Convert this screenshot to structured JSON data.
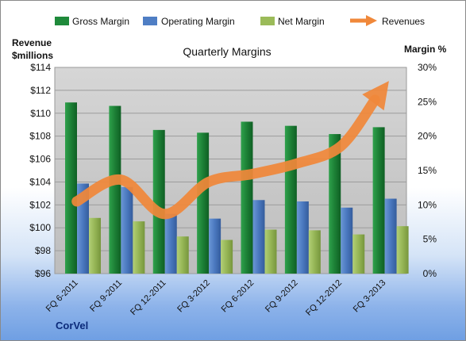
{
  "chart_data": {
    "type": "bar",
    "title": "Quarterly Margins",
    "company": "CorVel",
    "ylabel_left": [
      "Revenue",
      "$millions"
    ],
    "ylabel_right": "Margin %",
    "categories": [
      "FQ 6-2011",
      "FQ 9-2011",
      "FQ 12-2011",
      "FQ 3-2012",
      "FQ 6-2012",
      "FQ 9-2012",
      "FQ 12-2012",
      "FQ 3-2013"
    ],
    "left_axis": {
      "min": 96,
      "max": 114,
      "step": 2,
      "format": "$"
    },
    "right_axis": {
      "min": 0,
      "max": 30,
      "step": 5,
      "format": "%"
    },
    "series": [
      {
        "name": "Gross Margin",
        "type": "bar",
        "axis": "right",
        "color": "#1f8a3b",
        "values": [
          24.9,
          24.4,
          20.9,
          20.5,
          22.1,
          21.5,
          20.3,
          21.3
        ]
      },
      {
        "name": "Operating Margin",
        "type": "bar",
        "axis": "right",
        "color": "#4f7ec4",
        "values": [
          13.1,
          12.6,
          8.7,
          8.0,
          10.7,
          10.5,
          9.6,
          10.9
        ]
      },
      {
        "name": "Net Margin",
        "type": "bar",
        "axis": "right",
        "color": "#9bbb59",
        "values": [
          8.1,
          7.6,
          5.4,
          4.9,
          6.4,
          6.3,
          5.7,
          6.9
        ]
      },
      {
        "name": "Revenues",
        "type": "line",
        "axis": "left",
        "color": "#f0883a",
        "values": [
          102.3,
          104.2,
          101.2,
          104.0,
          104.7,
          105.6,
          107.1,
          112.0
        ]
      }
    ],
    "grid": true,
    "legend_position": "top"
  }
}
